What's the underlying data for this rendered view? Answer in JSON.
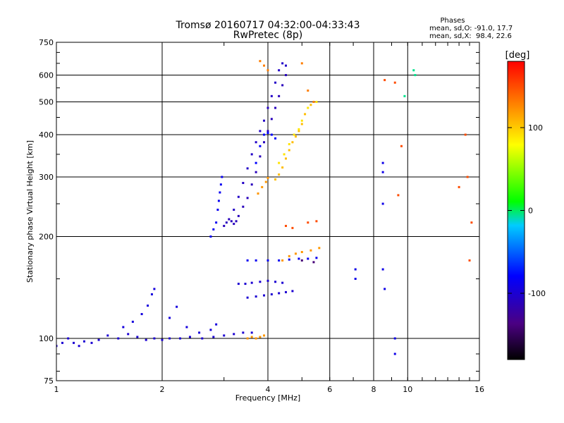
{
  "chart_data": {
    "type": "scatter",
    "title": "Tromsø 20160717 04:32:00-04:33:43",
    "subtitle": "RwPretec (8p)",
    "xlabel": "Frequency [MHz]",
    "ylabel": "Stationary phase Virtual Height [km]",
    "x_scale": "log",
    "y_scale": "log",
    "xlim": [
      1,
      16
    ],
    "ylim": [
      75,
      750
    ],
    "x_ticks": [
      1,
      2,
      4,
      6,
      8,
      10,
      16
    ],
    "x_tick_labels": [
      "1",
      "2",
      "4",
      "6",
      "8",
      "10",
      "16"
    ],
    "y_ticks": [
      75,
      100,
      200,
      300,
      400,
      500,
      600,
      750
    ],
    "y_tick_labels": [
      "75",
      "100",
      "200",
      "300",
      "400",
      "500",
      "600",
      "750"
    ],
    "grid": true,
    "stats": {
      "heading": "Phases",
      "line_o": "mean, sd,O: -91.0, 17.7",
      "line_x": "mean, sd,X:  98.4, 22.6"
    },
    "colorbar": {
      "label": "[deg]",
      "range": [
        -180,
        180
      ],
      "ticks": [
        100,
        0,
        -100
      ],
      "tick_labels": [
        "100",
        "0",
        "-100"
      ]
    },
    "traces": [
      {
        "phase": -100,
        "points": [
          [
            1.0,
            95
          ],
          [
            1.04,
            97
          ],
          [
            1.08,
            100
          ],
          [
            1.12,
            97
          ],
          [
            1.16,
            95
          ],
          [
            1.2,
            98
          ],
          [
            1.26,
            97
          ],
          [
            1.32,
            99
          ],
          [
            1.4,
            102
          ],
          [
            1.5,
            100
          ],
          [
            1.6,
            103
          ],
          [
            1.7,
            101
          ],
          [
            1.8,
            99
          ],
          [
            1.9,
            100
          ],
          [
            2.0,
            99
          ],
          [
            2.1,
            100
          ],
          [
            2.25,
            100
          ],
          [
            2.4,
            101
          ],
          [
            2.6,
            100
          ],
          [
            2.8,
            101
          ],
          [
            3.0,
            102
          ],
          [
            3.2,
            103
          ],
          [
            3.4,
            104
          ],
          [
            3.6,
            104
          ]
        ]
      },
      {
        "phase": -95,
        "points": [
          [
            1.55,
            108
          ],
          [
            1.65,
            112
          ],
          [
            1.75,
            118
          ],
          [
            1.82,
            125
          ],
          [
            1.87,
            135
          ],
          [
            1.9,
            140
          ],
          [
            2.1,
            115
          ],
          [
            2.2,
            124
          ],
          [
            2.35,
            108
          ],
          [
            2.55,
            104
          ],
          [
            2.75,
            106
          ],
          [
            2.85,
            110
          ]
        ]
      },
      {
        "phase": -85,
        "points": [
          [
            2.75,
            200
          ],
          [
            2.8,
            210
          ],
          [
            2.85,
            220
          ],
          [
            2.88,
            240
          ],
          [
            2.9,
            255
          ],
          [
            2.92,
            270
          ],
          [
            2.94,
            285
          ],
          [
            2.96,
            300
          ]
        ]
      },
      {
        "phase": -110,
        "points": [
          [
            3.0,
            215
          ],
          [
            3.05,
            220
          ],
          [
            3.1,
            225
          ],
          [
            3.15,
            222
          ],
          [
            3.2,
            218
          ],
          [
            3.25,
            222
          ],
          [
            3.3,
            230
          ],
          [
            3.4,
            245
          ],
          [
            3.5,
            260
          ],
          [
            3.6,
            285
          ],
          [
            3.7,
            310
          ],
          [
            3.8,
            345
          ],
          [
            3.9,
            380
          ],
          [
            4.0,
            410
          ],
          [
            4.1,
            445
          ],
          [
            4.2,
            480
          ],
          [
            4.3,
            520
          ],
          [
            4.4,
            560
          ],
          [
            4.5,
            600
          ]
        ]
      },
      {
        "phase": -105,
        "points": [
          [
            3.2,
            240
          ],
          [
            3.3,
            262
          ],
          [
            3.4,
            288
          ],
          [
            3.5,
            318
          ],
          [
            3.6,
            350
          ],
          [
            3.7,
            380
          ],
          [
            3.8,
            410
          ],
          [
            3.9,
            440
          ],
          [
            4.0,
            480
          ],
          [
            4.1,
            520
          ],
          [
            4.2,
            570
          ],
          [
            4.3,
            620
          ],
          [
            4.4,
            650
          ],
          [
            4.5,
            640
          ]
        ]
      },
      {
        "phase": -80,
        "points": [
          [
            3.7,
            330
          ],
          [
            3.8,
            370
          ],
          [
            3.9,
            400
          ],
          [
            4.0,
            405
          ],
          [
            4.1,
            400
          ],
          [
            4.2,
            390
          ]
        ]
      },
      {
        "phase": 105,
        "points": [
          [
            4.2,
            295
          ],
          [
            4.3,
            305
          ],
          [
            4.4,
            320
          ],
          [
            4.5,
            340
          ],
          [
            4.6,
            360
          ],
          [
            4.7,
            380
          ],
          [
            4.8,
            395
          ],
          [
            4.9,
            410
          ],
          [
            5.0,
            430
          ],
          [
            5.1,
            460
          ],
          [
            5.3,
            490
          ]
        ]
      },
      {
        "phase": 90,
        "points": [
          [
            4.3,
            330
          ],
          [
            4.45,
            350
          ],
          [
            4.6,
            375
          ],
          [
            4.75,
            400
          ],
          [
            4.9,
            415
          ],
          [
            5.0,
            440
          ],
          [
            5.2,
            480
          ],
          [
            5.5,
            500
          ]
        ]
      },
      {
        "phase": 120,
        "points": [
          [
            3.75,
            268
          ],
          [
            3.85,
            280
          ],
          [
            3.95,
            290
          ],
          [
            4.0,
            298
          ]
        ]
      },
      {
        "phase": -100,
        "points": [
          [
            3.3,
            145
          ],
          [
            3.45,
            145
          ],
          [
            3.6,
            146
          ],
          [
            3.8,
            147
          ],
          [
            4.0,
            148
          ],
          [
            4.2,
            147
          ],
          [
            4.4,
            146
          ],
          [
            3.5,
            132
          ],
          [
            3.7,
            133
          ],
          [
            3.9,
            134
          ],
          [
            4.1,
            135
          ],
          [
            4.3,
            136
          ],
          [
            4.5,
            137
          ],
          [
            4.7,
            138
          ]
        ]
      },
      {
        "phase": -85,
        "points": [
          [
            3.5,
            170
          ],
          [
            3.7,
            170
          ],
          [
            4.0,
            170
          ],
          [
            4.3,
            170
          ],
          [
            4.6,
            171
          ],
          [
            4.9,
            172
          ],
          [
            5.2,
            172
          ],
          [
            5.5,
            173
          ]
        ]
      },
      {
        "phase": 120,
        "points": [
          [
            4.4,
            170
          ],
          [
            4.6,
            175
          ],
          [
            4.8,
            178
          ],
          [
            5.0,
            180
          ],
          [
            5.3,
            182
          ],
          [
            5.6,
            185
          ]
        ]
      },
      {
        "phase": 150,
        "points": [
          [
            4.5,
            215
          ],
          [
            4.7,
            212
          ],
          [
            5.2,
            220
          ],
          [
            5.5,
            222
          ]
        ]
      },
      {
        "phase": -140,
        "points": [
          [
            5.0,
            170
          ],
          [
            5.4,
            168
          ]
        ]
      },
      {
        "phase": 120,
        "points": [
          [
            3.5,
            100
          ],
          [
            3.6,
            101
          ],
          [
            3.7,
            100
          ],
          [
            3.8,
            101
          ],
          [
            3.9,
            102
          ]
        ]
      },
      {
        "phase": 130,
        "points": [
          [
            3.8,
            660
          ],
          [
            3.9,
            640
          ],
          [
            4.0,
            620
          ],
          [
            5.0,
            650
          ],
          [
            5.2,
            540
          ],
          [
            5.4,
            500
          ]
        ]
      },
      {
        "phase": -5,
        "points": [
          [
            10.4,
            620
          ],
          [
            10.5,
            600
          ],
          [
            9.8,
            520
          ]
        ]
      },
      {
        "phase": 150,
        "points": [
          [
            8.6,
            580
          ],
          [
            9.2,
            570
          ],
          [
            9.6,
            370
          ],
          [
            9.4,
            265
          ],
          [
            14.6,
            400
          ],
          [
            14.8,
            300
          ],
          [
            15.2,
            220
          ],
          [
            14.0,
            280
          ],
          [
            15.0,
            170
          ]
        ]
      },
      {
        "phase": -90,
        "points": [
          [
            8.5,
            330
          ],
          [
            8.5,
            310
          ],
          [
            8.5,
            250
          ],
          [
            8.5,
            160
          ],
          [
            8.6,
            140
          ],
          [
            9.2,
            100
          ],
          [
            9.2,
            90
          ],
          [
            7.1,
            150
          ],
          [
            7.1,
            160
          ]
        ]
      }
    ]
  }
}
